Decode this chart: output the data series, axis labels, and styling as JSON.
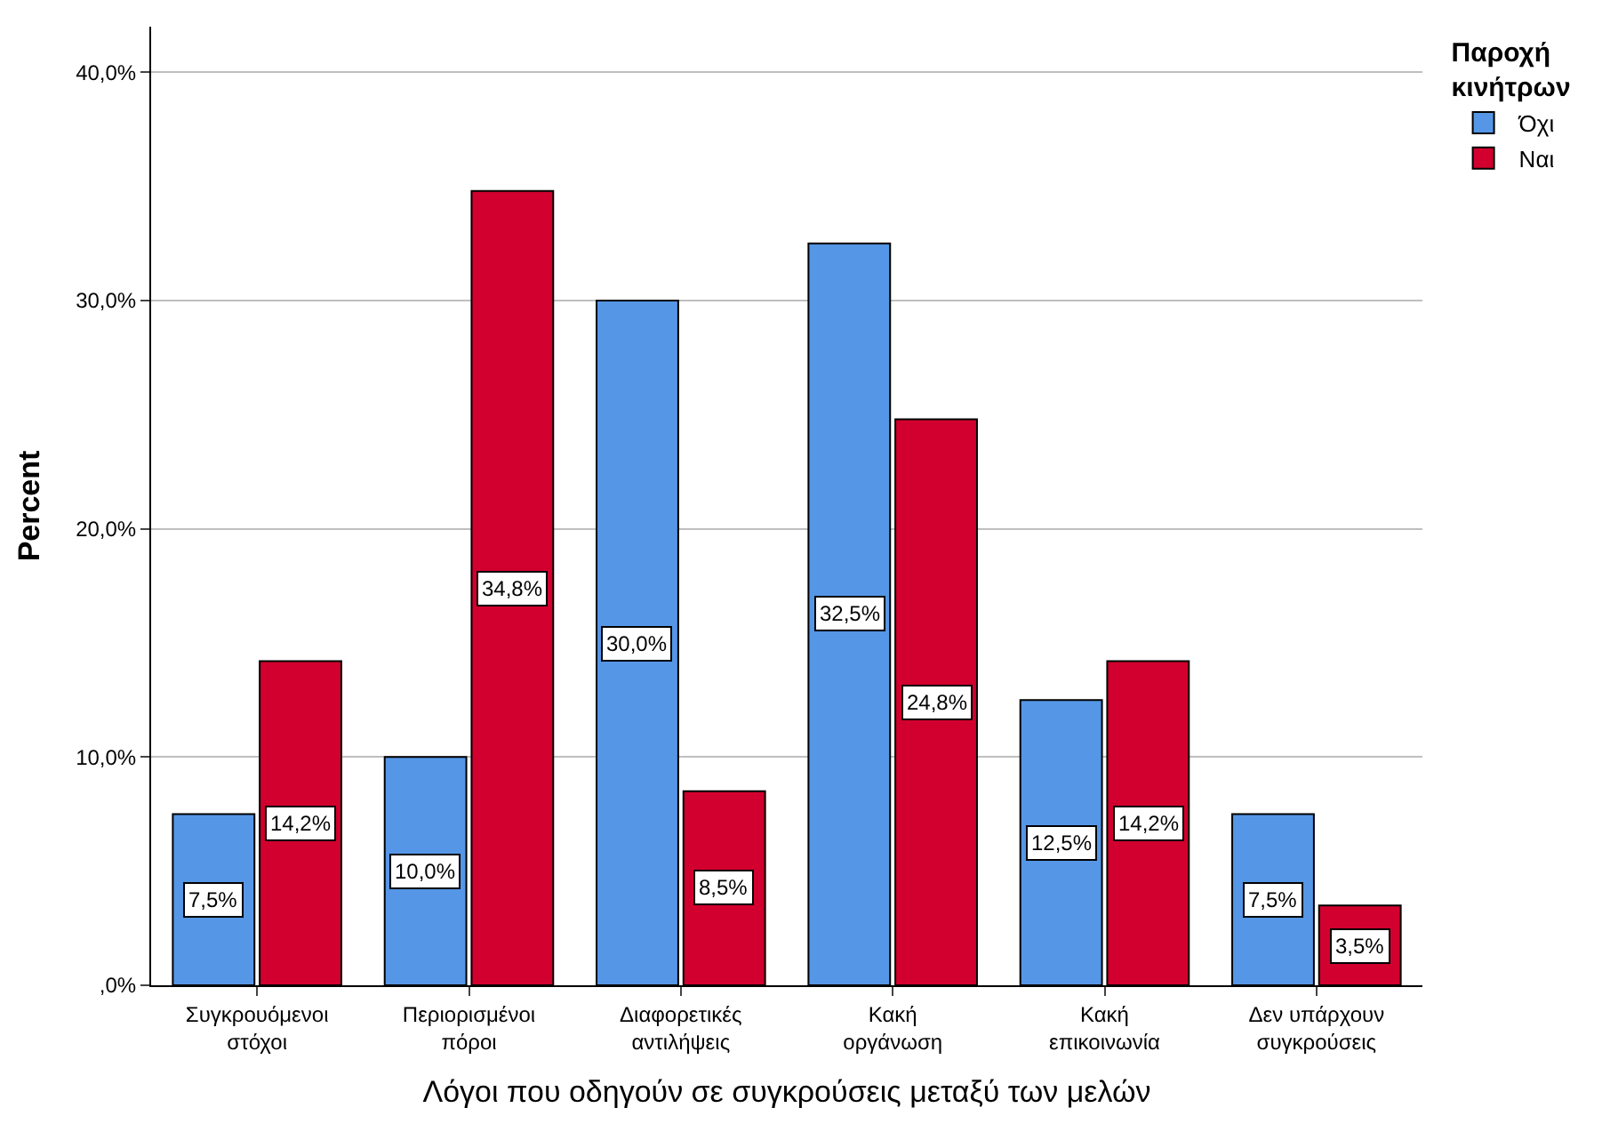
{
  "chart_data": {
    "type": "bar",
    "xlabel": "Λόγοι που οδηγούν σε συγκρούσεις μεταξύ των μελών",
    "ylabel": "Percent",
    "legend_title": "Παροχή\nκινήτρων",
    "categories": [
      "Συγκρουόμενοι\nστόχοι",
      "Περιορισμένοι\nπόροι",
      "Διαφορετικές\nαντιλήψεις",
      "Κακή\nοργάνωση",
      "Κακή\nεπικοινωνία",
      "Δεν υπάρχουν\nσυγκρούσεις"
    ],
    "series": [
      {
        "name": "Όχι",
        "color": "#5596e6",
        "values": [
          7.5,
          10.0,
          30.0,
          32.5,
          12.5,
          7.5
        ],
        "value_labels": [
          "7,5%",
          "10,0%",
          "30,0%",
          "32,5%",
          "12,5%",
          "7,5%"
        ]
      },
      {
        "name": "Ναι",
        "color": "#d2002e",
        "values": [
          14.2,
          34.8,
          8.5,
          24.8,
          14.2,
          3.5
        ],
        "value_labels": [
          "14,2%",
          "34,8%",
          "8,5%",
          "24,8%",
          "14,2%",
          "3,5%"
        ]
      }
    ],
    "ylim": [
      0,
      42
    ],
    "yticks": [
      {
        "value": 0,
        "label": ",0%"
      },
      {
        "value": 10,
        "label": "10,0%"
      },
      {
        "value": 20,
        "label": "20,0%"
      },
      {
        "value": 30,
        "label": "30,0%"
      },
      {
        "value": 40,
        "label": "40,0%"
      }
    ],
    "grid": "y",
    "legend": "top right"
  }
}
